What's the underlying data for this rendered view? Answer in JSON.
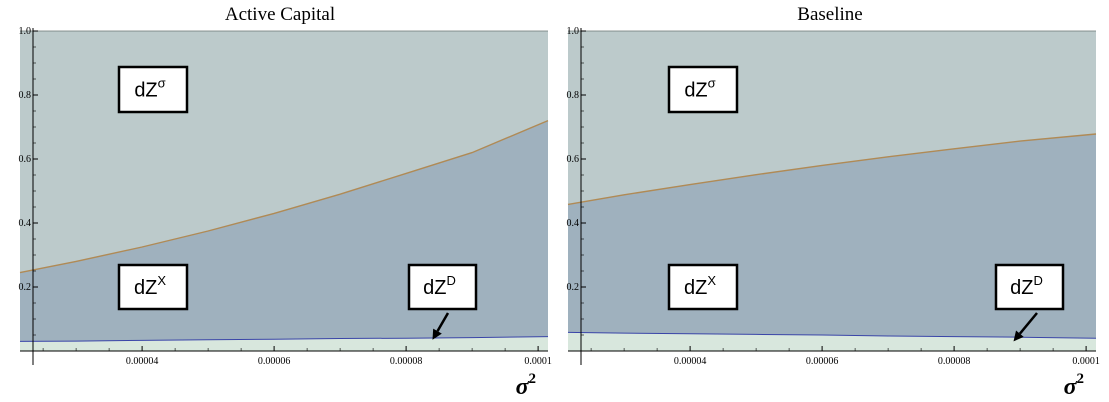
{
  "chart_data": [
    {
      "type": "area",
      "title": "Active Capital",
      "xlabel": "σ",
      "xlabel_superscript": "2",
      "xlim": [
        2.15e-05,
        0.0001015
      ],
      "ylim": [
        0.0,
        1.0
      ],
      "x_ticks": [
        {
          "value": 4e-05,
          "label": "0.00004"
        },
        {
          "value": 6e-05,
          "label": "0.00006"
        },
        {
          "value": 8e-05,
          "label": "0.00008"
        },
        {
          "value": 0.0001,
          "label": "0.0001"
        }
      ],
      "y_ticks": [
        {
          "value": 0.2,
          "label": "0.2"
        },
        {
          "value": 0.4,
          "label": "0.4"
        },
        {
          "value": 0.6,
          "label": "0.6"
        },
        {
          "value": 0.8,
          "label": "0.8"
        },
        {
          "value": 1.0,
          "label": "1.0"
        }
      ],
      "x": [
        2.15e-05,
        3e-05,
        4e-05,
        5e-05,
        6e-05,
        7e-05,
        8e-05,
        9e-05,
        0.0001015
      ],
      "series": [
        {
          "id": "lower",
          "color": "#3a45a8",
          "values": [
            0.03,
            0.031,
            0.033,
            0.035,
            0.037,
            0.039,
            0.04,
            0.042,
            0.045
          ]
        },
        {
          "id": "upper",
          "color": "#b08a55",
          "values": [
            0.245,
            0.28,
            0.325,
            0.375,
            0.43,
            0.49,
            0.555,
            0.62,
            0.72
          ]
        }
      ],
      "regions": [
        {
          "label": "dZ",
          "superscript": "σ",
          "fill": "#bccacb"
        },
        {
          "label": "dZ",
          "superscript": "X",
          "fill": "#9fb1be"
        },
        {
          "label": "dZ",
          "superscript": "D",
          "fill": "#d8e7dd"
        }
      ],
      "annotation_arrow_target": {
        "x": 8.4e-05,
        "y": 0.035
      }
    },
    {
      "type": "area",
      "title": "Baseline",
      "xlabel": "σ",
      "xlabel_superscript": "2",
      "xlim": [
        2.15e-05,
        0.0001015
      ],
      "ylim": [
        0.0,
        1.0
      ],
      "x_ticks": [
        {
          "value": 4e-05,
          "label": "0.00004"
        },
        {
          "value": 6e-05,
          "label": "0.00006"
        },
        {
          "value": 8e-05,
          "label": "0.00008"
        },
        {
          "value": 0.0001,
          "label": "0.0001"
        }
      ],
      "y_ticks": [
        {
          "value": 0.2,
          "label": "0.2"
        },
        {
          "value": 0.4,
          "label": "0.4"
        },
        {
          "value": 0.6,
          "label": "0.6"
        },
        {
          "value": 0.8,
          "label": "0.8"
        },
        {
          "value": 1.0,
          "label": "1.0"
        }
      ],
      "x": [
        2.15e-05,
        3e-05,
        4e-05,
        5e-05,
        6e-05,
        7e-05,
        8e-05,
        9e-05,
        0.0001015
      ],
      "series": [
        {
          "id": "lower",
          "color": "#3a45a8",
          "values": [
            0.058,
            0.056,
            0.054,
            0.052,
            0.05,
            0.047,
            0.045,
            0.043,
            0.04
          ]
        },
        {
          "id": "upper",
          "color": "#b08a55",
          "values": [
            0.458,
            0.488,
            0.52,
            0.551,
            0.58,
            0.607,
            0.632,
            0.656,
            0.678
          ]
        }
      ],
      "regions": [
        {
          "label": "dZ",
          "superscript": "σ",
          "fill": "#bccacb"
        },
        {
          "label": "dZ",
          "superscript": "X",
          "fill": "#9fb1be"
        },
        {
          "label": "dZ",
          "superscript": "D",
          "fill": "#d8e7dd"
        }
      ],
      "annotation_arrow_target": {
        "x": 8.9e-05,
        "y": 0.03
      }
    }
  ]
}
